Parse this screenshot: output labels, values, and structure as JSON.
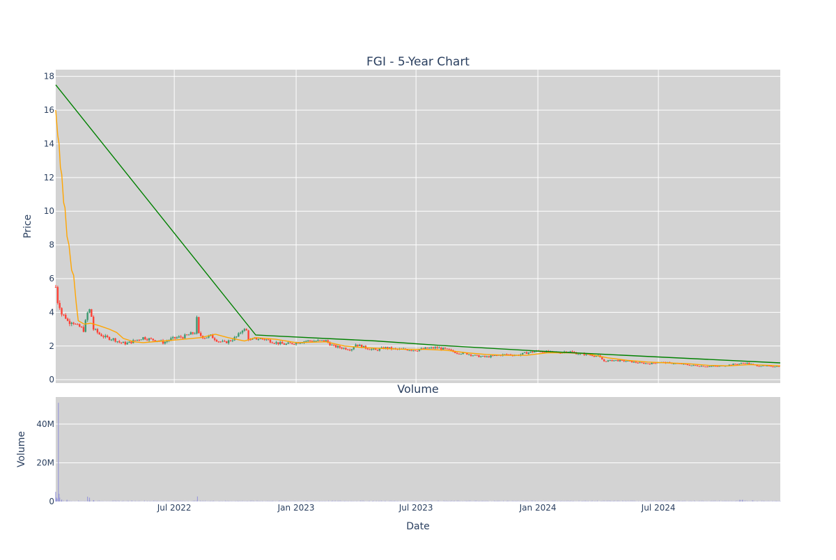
{
  "chart_data": {
    "type": "candlestick",
    "title": "FGI - 5-Year Chart",
    "xlabel": "Date",
    "price_panel": {
      "ylabel": "Price",
      "ylim": [
        -0.2,
        18.4
      ],
      "yticks": [
        0,
        2,
        4,
        6,
        8,
        10,
        12,
        14,
        16,
        18
      ],
      "grid": true,
      "background": "#d3d3d3",
      "colors": {
        "increasing": "#3d9970",
        "decreasing": "#ff4136",
        "ma_short": "#ffa500",
        "ma_long": "#008000"
      },
      "ohlc_anchors": [
        [
          "2022-01-03",
          5.5
        ],
        [
          "2022-01-05",
          3.1
        ],
        [
          "2022-01-07",
          6.2
        ],
        [
          "2022-01-09",
          4.4
        ],
        [
          "2022-01-12",
          3.9
        ],
        [
          "2022-01-18",
          3.7
        ],
        [
          "2022-01-22",
          3.4
        ],
        [
          "2022-01-28",
          3.5
        ],
        [
          "2022-02-03",
          3.2
        ],
        [
          "2022-02-10",
          3.1
        ],
        [
          "2022-02-15",
          2.9
        ],
        [
          "2022-02-18",
          3.7
        ],
        [
          "2022-02-22",
          4.2
        ],
        [
          "2022-02-25",
          4.0
        ],
        [
          "2022-03-01",
          3.0
        ],
        [
          "2022-03-10",
          2.7
        ],
        [
          "2022-03-20",
          2.5
        ],
        [
          "2022-04-01",
          2.4
        ],
        [
          "2022-04-10",
          2.2
        ],
        [
          "2022-04-20",
          2.15
        ],
        [
          "2022-05-01",
          2.3
        ],
        [
          "2022-05-15",
          2.5
        ],
        [
          "2022-05-25",
          2.4
        ],
        [
          "2022-06-05",
          2.35
        ],
        [
          "2022-06-15",
          2.2
        ],
        [
          "2022-06-25",
          2.4
        ],
        [
          "2022-07-05",
          2.5
        ],
        [
          "2022-07-15",
          2.55
        ],
        [
          "2022-07-25",
          2.7
        ],
        [
          "2022-08-01",
          2.8
        ],
        [
          "2022-08-04",
          3.6
        ],
        [
          "2022-08-07",
          2.7
        ],
        [
          "2022-08-15",
          2.5
        ],
        [
          "2022-08-25",
          2.6
        ],
        [
          "2022-09-05",
          2.3
        ],
        [
          "2022-09-15",
          2.2
        ],
        [
          "2022-09-25",
          2.35
        ],
        [
          "2022-10-05",
          2.6
        ],
        [
          "2022-10-12",
          3.0
        ],
        [
          "2022-10-18",
          2.9
        ],
        [
          "2022-10-22",
          2.3
        ],
        [
          "2022-11-01",
          2.45
        ],
        [
          "2022-11-15",
          2.4
        ],
        [
          "2022-12-01",
          2.2
        ],
        [
          "2022-12-15",
          2.1
        ],
        [
          "2023-01-01",
          2.2
        ],
        [
          "2023-01-15",
          2.3
        ],
        [
          "2023-02-01",
          2.3
        ],
        [
          "2023-02-15",
          2.3
        ],
        [
          "2023-02-25",
          2.0
        ],
        [
          "2023-03-10",
          1.9
        ],
        [
          "2023-03-25",
          1.8
        ],
        [
          "2023-04-01",
          2.1
        ],
        [
          "2023-04-15",
          1.9
        ],
        [
          "2023-05-01",
          1.75
        ],
        [
          "2023-05-15",
          1.9
        ],
        [
          "2023-06-01",
          1.8
        ],
        [
          "2023-06-15",
          1.8
        ],
        [
          "2023-07-01",
          1.75
        ],
        [
          "2023-07-15",
          1.85
        ],
        [
          "2023-08-01",
          1.9
        ],
        [
          "2023-08-15",
          1.8
        ],
        [
          "2023-09-01",
          1.6
        ],
        [
          "2023-09-15",
          1.55
        ],
        [
          "2023-10-01",
          1.4
        ],
        [
          "2023-10-15",
          1.35
        ],
        [
          "2023-11-01",
          1.45
        ],
        [
          "2023-11-15",
          1.5
        ],
        [
          "2023-12-01",
          1.45
        ],
        [
          "2023-12-15",
          1.6
        ],
        [
          "2024-01-01",
          1.7
        ],
        [
          "2024-01-15",
          1.65
        ],
        [
          "2024-02-01",
          1.6
        ],
        [
          "2024-02-15",
          1.7
        ],
        [
          "2024-03-01",
          1.55
        ],
        [
          "2024-03-15",
          1.5
        ],
        [
          "2024-04-01",
          1.4
        ],
        [
          "2024-04-10",
          1.1
        ],
        [
          "2024-04-25",
          1.15
        ],
        [
          "2024-05-15",
          1.1
        ],
        [
          "2024-06-01",
          1.0
        ],
        [
          "2024-06-20",
          0.95
        ],
        [
          "2024-07-01",
          1.05
        ],
        [
          "2024-07-15",
          1.0
        ],
        [
          "2024-08-01",
          0.95
        ],
        [
          "2024-08-20",
          0.85
        ],
        [
          "2024-09-10",
          0.8
        ],
        [
          "2024-10-01",
          0.8
        ],
        [
          "2024-10-20",
          0.9
        ],
        [
          "2024-11-10",
          1.0
        ],
        [
          "2024-11-25",
          0.85
        ],
        [
          "2024-12-15",
          0.8
        ],
        [
          "2025-01-01",
          0.8
        ]
      ],
      "ma_short": [
        [
          "2022-01-03",
          16.0
        ],
        [
          "2022-01-06",
          14.5
        ],
        [
          "2022-01-08",
          14.0
        ],
        [
          "2022-01-10",
          12.6
        ],
        [
          "2022-01-12",
          12.2
        ],
        [
          "2022-01-15",
          10.5
        ],
        [
          "2022-01-17",
          10.2
        ],
        [
          "2022-01-20",
          8.5
        ],
        [
          "2022-01-23",
          8.0
        ],
        [
          "2022-01-27",
          6.5
        ],
        [
          "2022-01-30",
          6.2
        ],
        [
          "2022-02-03",
          4.5
        ],
        [
          "2022-02-06",
          3.5
        ],
        [
          "2022-02-15",
          3.3
        ],
        [
          "2022-02-25",
          3.35
        ],
        [
          "2022-03-10",
          3.2
        ],
        [
          "2022-03-25",
          3.0
        ],
        [
          "2022-04-05",
          2.8
        ],
        [
          "2022-04-15",
          2.45
        ],
        [
          "2022-05-01",
          2.25
        ],
        [
          "2022-05-15",
          2.2
        ],
        [
          "2022-06-15",
          2.3
        ],
        [
          "2022-07-15",
          2.4
        ],
        [
          "2022-08-10",
          2.5
        ],
        [
          "2022-09-01",
          2.7
        ],
        [
          "2022-09-20",
          2.5
        ],
        [
          "2022-10-15",
          2.3
        ],
        [
          "2022-11-01",
          2.5
        ],
        [
          "2022-12-01",
          2.4
        ],
        [
          "2023-01-01",
          2.2
        ],
        [
          "2023-02-15",
          2.25
        ],
        [
          "2023-03-15",
          2.0
        ],
        [
          "2023-04-15",
          1.9
        ],
        [
          "2023-05-15",
          1.85
        ],
        [
          "2023-06-15",
          1.8
        ],
        [
          "2023-07-15",
          1.8
        ],
        [
          "2023-08-15",
          1.75
        ],
        [
          "2023-09-15",
          1.6
        ],
        [
          "2023-10-15",
          1.5
        ],
        [
          "2023-11-15",
          1.45
        ],
        [
          "2023-12-15",
          1.45
        ],
        [
          "2024-01-15",
          1.6
        ],
        [
          "2024-02-15",
          1.6
        ],
        [
          "2024-03-15",
          1.55
        ],
        [
          "2024-04-15",
          1.3
        ],
        [
          "2024-05-15",
          1.15
        ],
        [
          "2024-06-15",
          1.05
        ],
        [
          "2024-07-15",
          1.0
        ],
        [
          "2024-08-15",
          0.95
        ],
        [
          "2024-09-15",
          0.85
        ],
        [
          "2024-10-15",
          0.82
        ],
        [
          "2024-11-15",
          0.9
        ],
        [
          "2024-12-15",
          0.85
        ],
        [
          "2025-01-01",
          0.82
        ]
      ],
      "ma_long": [
        [
          "2022-01-03",
          17.5
        ],
        [
          "2022-11-01",
          2.65
        ],
        [
          "2023-05-01",
          2.3
        ],
        [
          "2023-08-01",
          2.05
        ],
        [
          "2024-01-01",
          1.7
        ],
        [
          "2024-07-01",
          1.35
        ],
        [
          "2025-01-01",
          1.0
        ]
      ]
    },
    "volume_panel": {
      "title": "Volume",
      "ylabel": "Volume",
      "ylim": [
        0,
        54000000
      ],
      "yticks": [
        0,
        20000000,
        40000000
      ],
      "ytick_labels": [
        "0",
        "20M",
        "40M"
      ],
      "grid": true,
      "background": "#d3d3d3",
      "bar_color": "#9a9ad8",
      "spikes": [
        [
          "2022-01-03",
          5000000
        ],
        [
          "2022-01-04",
          2000000
        ],
        [
          "2022-01-05",
          1500000
        ],
        [
          "2022-01-07",
          51000000
        ],
        [
          "2022-01-08",
          4000000
        ],
        [
          "2022-01-09",
          2000000
        ],
        [
          "2022-01-12",
          1000000
        ],
        [
          "2022-01-20",
          900000
        ],
        [
          "2022-02-20",
          2500000
        ],
        [
          "2022-02-23",
          2000000
        ],
        [
          "2022-03-01",
          700000
        ],
        [
          "2022-08-05",
          2600000
        ],
        [
          "2024-11-01",
          900000
        ],
        [
          "2024-11-05",
          900000
        ],
        [
          "2024-11-20",
          600000
        ]
      ]
    },
    "x_axis": {
      "range": [
        "2022-01-03",
        "2025-01-01"
      ],
      "ticks": [
        [
          "2022-07-01",
          "Jul 2022"
        ],
        [
          "2023-01-01",
          "Jan 2023"
        ],
        [
          "2023-07-01",
          "Jul 2023"
        ],
        [
          "2024-01-01",
          "Jan 2024"
        ],
        [
          "2024-07-01",
          "Jul 2024"
        ]
      ]
    }
  }
}
